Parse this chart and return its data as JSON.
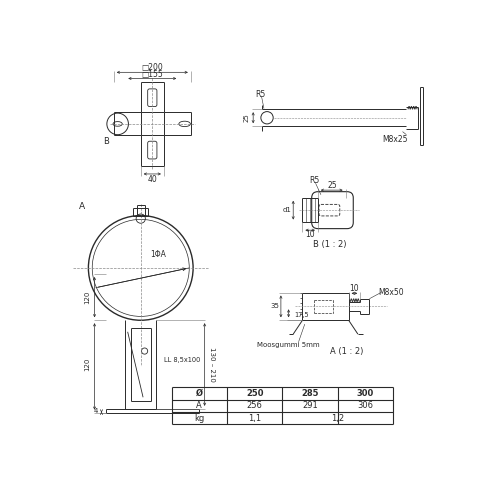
{
  "bg_color": "#ffffff",
  "line_color": "#2a2a2a",
  "text_color": "#2a2a2a",
  "table_headers": [
    "Ø",
    "250",
    "285",
    "300"
  ],
  "table_row1": [
    "A",
    "256",
    "291",
    "306"
  ],
  "table_row2_label": "kg",
  "table_val1": "1,1",
  "table_val2": "1,2"
}
